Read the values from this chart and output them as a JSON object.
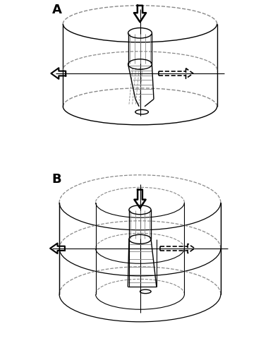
{
  "fig_width": 3.97,
  "fig_height": 5.0,
  "dpi": 100,
  "bg_color": "#ffffff",
  "label_A": "A",
  "label_B": "B",
  "label_fontsize": 13,
  "label_fontweight": "bold",
  "lc": "#000000",
  "dc": "#888888"
}
